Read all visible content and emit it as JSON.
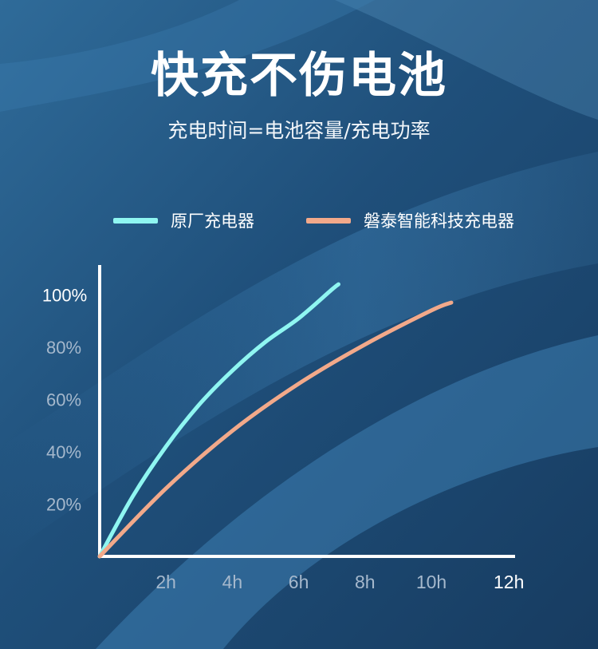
{
  "title": "快充不伤电池",
  "subtitle": "充电时间=电池容量/充电功率",
  "chart_data": {
    "type": "line",
    "x_ticks": [
      "2h",
      "4h",
      "6h",
      "8h",
      "10h",
      "12h"
    ],
    "y_ticks": [
      "20%",
      "40%",
      "60%",
      "80%",
      "100%"
    ],
    "xlim": [
      0,
      12.5
    ],
    "ylim": [
      0,
      100
    ],
    "series": [
      {
        "name": "原厂充电器",
        "color": "#8ff6f1",
        "x": [
          0,
          1,
          2,
          3,
          4,
          5,
          6,
          7,
          7.2
        ],
        "y": [
          0,
          23,
          42,
          58,
          71,
          82,
          91,
          102,
          104
        ]
      },
      {
        "name": "磐泰智能科技充电器",
        "color": "#f2a98a",
        "x": [
          0,
          2,
          4,
          6,
          8,
          10,
          10.6
        ],
        "y": [
          0,
          26,
          48,
          66,
          81,
          94,
          97
        ]
      }
    ]
  },
  "colors": {
    "axis": "#ffffff",
    "tick_dim": "#a5b8cc",
    "tick_bright": "#ffffff"
  }
}
